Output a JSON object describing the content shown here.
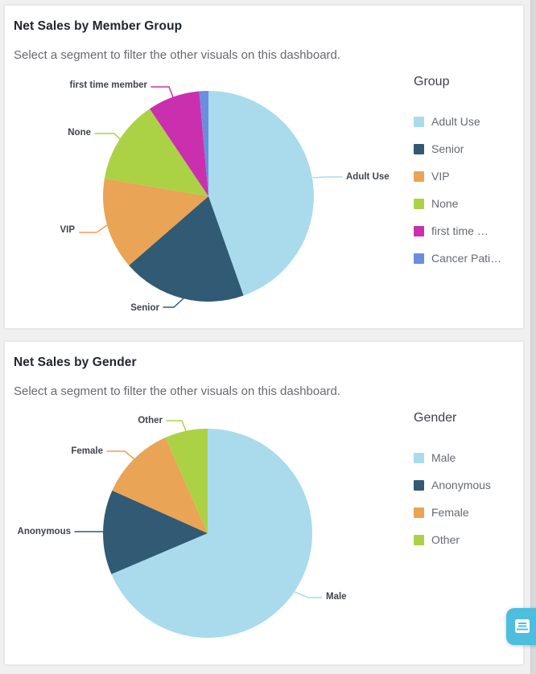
{
  "page": {
    "background": "#f0f0f1",
    "card_border": "#e8e8e9"
  },
  "feedback_button": {
    "color": "#4dbedd",
    "icon": "feedback-panel-icon"
  },
  "charts": [
    {
      "title": "Net Sales by Member Group",
      "subtitle": "Select a segment to filter the other visuals on this dashboard.",
      "legend_title": "Group",
      "legend": [
        {
          "label": "Adult Use",
          "color": "#a9dbec"
        },
        {
          "label": "Senior",
          "color": "#315a74"
        },
        {
          "label": "VIP",
          "color": "#eaa455"
        },
        {
          "label": "None",
          "color": "#abd245"
        },
        {
          "label": "first time …",
          "color": "#ca30ae"
        },
        {
          "label": "Cancer Pati…",
          "color": "#6b8dde"
        }
      ],
      "callouts": [
        {
          "label": "first time member"
        },
        {
          "label": "None"
        },
        {
          "label": "VIP"
        },
        {
          "label": "Senior"
        },
        {
          "label": "Adult Use"
        }
      ]
    },
    {
      "title": "Net Sales by Gender",
      "subtitle": "Select a segment to filter the other visuals on this dashboard.",
      "legend_title": "Gender",
      "legend": [
        {
          "label": "Male",
          "color": "#a9dbec"
        },
        {
          "label": "Anonymous",
          "color": "#315a74"
        },
        {
          "label": "Female",
          "color": "#eaa455"
        },
        {
          "label": "Other",
          "color": "#abd245"
        }
      ],
      "callouts": [
        {
          "label": "Other"
        },
        {
          "label": "Female"
        },
        {
          "label": "Anonymous"
        },
        {
          "label": "Male"
        }
      ]
    }
  ],
  "chart_data": [
    {
      "type": "pie",
      "title": "Net Sales by Member Group",
      "categories": [
        "Adult Use",
        "Senior",
        "VIP",
        "None",
        "first time member",
        "Cancer Pati…"
      ],
      "values_pct": [
        44.6,
        19.0,
        14.1,
        12.9,
        8.0,
        1.4
      ],
      "colors": [
        "#a9dbec",
        "#315a74",
        "#eaa455",
        "#abd245",
        "#ca30ae",
        "#6b8dde"
      ],
      "start_angle_deg": 0,
      "direction": "clockwise",
      "legend_position": "right"
    },
    {
      "type": "pie",
      "title": "Net Sales by Gender",
      "categories": [
        "Male",
        "Anonymous",
        "Female",
        "Other"
      ],
      "values_pct": [
        68.6,
        13.1,
        11.7,
        6.6
      ],
      "colors": [
        "#a9dbec",
        "#315a74",
        "#eaa455",
        "#abd245"
      ],
      "start_angle_deg": 0,
      "direction": "clockwise",
      "legend_position": "right"
    }
  ]
}
